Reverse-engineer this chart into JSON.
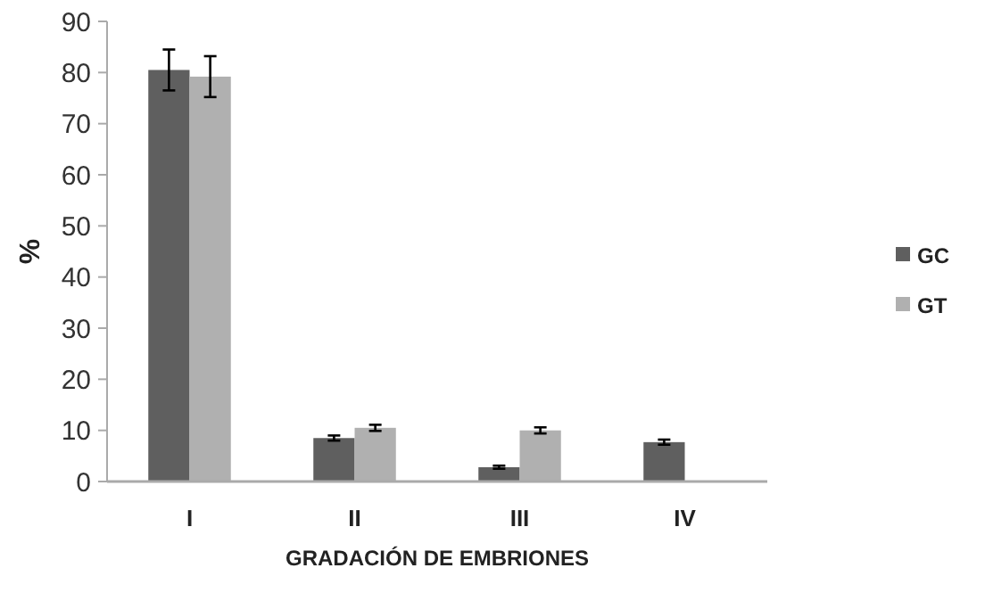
{
  "chart_data": {
    "type": "bar",
    "xlabel": "GRADACIÓN DE EMBRIONES",
    "ylabel": "%",
    "categories": [
      "I",
      "II",
      "III",
      "IV"
    ],
    "series": [
      {
        "name": "GC",
        "color": "#5f5f5f",
        "values": [
          80.5,
          8.5,
          2.8,
          7.7
        ],
        "errors": [
          4,
          0.5,
          0.3,
          0.5
        ]
      },
      {
        "name": "GT",
        "color": "#b0b0b0",
        "values": [
          79.2,
          10.5,
          10,
          null
        ],
        "errors": [
          4,
          0.6,
          0.6,
          null
        ]
      }
    ],
    "ylim": [
      0,
      90
    ],
    "yticks": [
      0,
      10,
      20,
      30,
      40,
      50,
      60,
      70,
      80,
      90
    ],
    "grid": false,
    "legend": "right"
  }
}
